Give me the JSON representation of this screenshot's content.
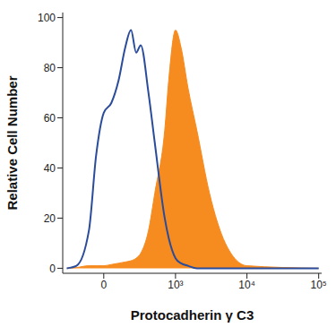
{
  "chart_data": {
    "type": "line",
    "x_label": "Protocadherin γ C3",
    "y_label": "Relative Cell Number",
    "x": [
      -300,
      -200,
      -100,
      -50,
      0,
      50,
      100,
      150,
      200,
      250,
      300,
      400,
      500,
      700,
      800,
      1000,
      1200,
      1500,
      2000,
      3000,
      5000,
      10000,
      100000
    ],
    "series": [
      {
        "type": "area",
        "color": "#f68b1f",
        "values": [
          0,
          0.3,
          1,
          1,
          1,
          1.5,
          2,
          2.5,
          3,
          4,
          6,
          15,
          30,
          55,
          75,
          95,
          88,
          72,
          55,
          30,
          10,
          1,
          0
        ]
      },
      {
        "type": "line",
        "color": "#2b4c9b",
        "values": [
          0,
          1,
          15,
          45,
          62,
          66,
          75,
          88,
          95,
          86,
          89,
          70,
          50,
          20,
          12,
          4,
          2,
          1,
          0,
          0,
          0,
          0,
          0
        ]
      }
    ],
    "xlim": [
      -350,
      110000
    ],
    "xticks": [
      0,
      {
        "value": 1000,
        "label": "10³"
      },
      {
        "value": 10000,
        "label": "10⁴"
      },
      {
        "value": 100000,
        "label": "10⁵"
      }
    ],
    "ylim": [
      -2,
      102
    ],
    "yticks": [
      0,
      20,
      40,
      60,
      80,
      100
    ],
    "grid": false
  }
}
